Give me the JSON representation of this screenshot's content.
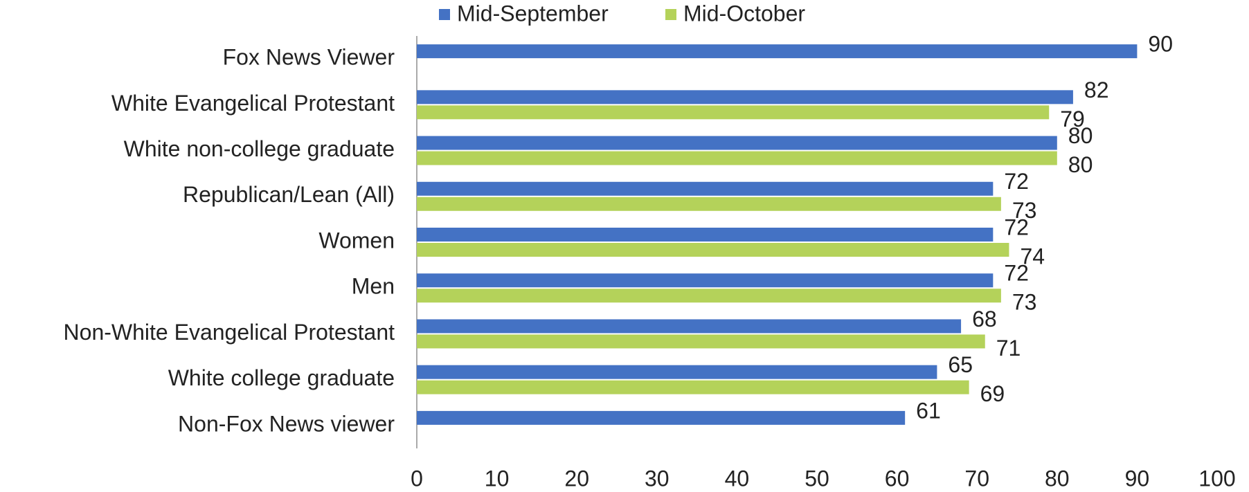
{
  "chart_data": {
    "type": "bar",
    "orientation": "horizontal",
    "categories": [
      "Fox News Viewer",
      "White Evangelical Protestant",
      "White non-college graduate",
      "Republican/Lean (All)",
      "Women",
      "Men",
      "Non-White Evangelical Protestant",
      "White college graduate",
      "Non-Fox News viewer"
    ],
    "series": [
      {
        "name": "Mid-September",
        "color": "#4472c4",
        "values": [
          90,
          82,
          80,
          72,
          72,
          72,
          68,
          65,
          61
        ]
      },
      {
        "name": "Mid-October",
        "color": "#b4d25a",
        "values": [
          null,
          79,
          80,
          73,
          74,
          73,
          71,
          69,
          null
        ]
      }
    ],
    "xlim": [
      0,
      100
    ],
    "xticks": [
      0,
      10,
      20,
      30,
      40,
      50,
      60,
      70,
      80,
      90,
      100
    ],
    "grid": false,
    "legend": "top"
  }
}
